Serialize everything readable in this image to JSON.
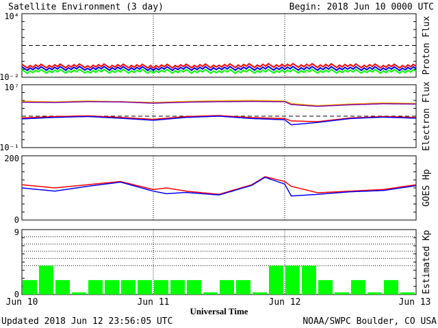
{
  "header": {
    "title": "Satellite Environment (3 day)",
    "begin": "Begin:  2018 Jun 10 0000 UTC"
  },
  "footer": {
    "updated": "Updated 2018 Jun 12 23:56:05 UTC",
    "credit": "NOAA/SWPC Boulder, CO USA"
  },
  "x_axis": {
    "label": "Universal Time",
    "ticks": [
      "Jun 10",
      "Jun 11",
      "Jun 12",
      "Jun 13"
    ]
  },
  "colors": {
    "red": "#ff0000",
    "blue": "#0000ff",
    "green": "#00ff00",
    "orange": "#ffa500",
    "purple": "#7a00a0",
    "frame": "#000000"
  },
  "chart_data": [
    {
      "type": "line",
      "ylabel": "Proton Flux",
      "y_scale": "log",
      "ylim": [
        0.01,
        10000
      ],
      "y_ticks": [
        "10⁴",
        "10⁻²"
      ],
      "threshold": 10,
      "x": [
        0,
        0.5,
        1,
        1.5,
        2,
        2.5,
        3
      ],
      "series": [
        {
          "color": "red",
          "values": [
            0.11,
            0.12,
            0.11,
            0.12,
            0.13,
            0.12,
            0.11
          ]
        },
        {
          "color": "blue",
          "values": [
            0.065,
            0.07,
            0.065,
            0.068,
            0.07,
            0.066,
            0.064
          ]
        },
        {
          "color": "green",
          "values": [
            0.035,
            0.037,
            0.036,
            0.035,
            0.037,
            0.036,
            0.035
          ]
        }
      ]
    },
    {
      "type": "line",
      "ylabel": "Electron Flux",
      "y_scale": "log",
      "ylim": [
        0.1,
        10000000
      ],
      "y_ticks": [
        "10⁷",
        "10⁻¹"
      ],
      "threshold": 1000,
      "x": [
        0,
        0.25,
        0.5,
        0.75,
        1.0,
        1.25,
        1.5,
        1.75,
        2.0,
        2.05,
        2.25,
        2.5,
        2.75,
        3.0
      ],
      "series": [
        {
          "color": "orange",
          "values": [
            80000,
            65000,
            85000,
            70000,
            55000,
            75000,
            90000,
            100000,
            85000,
            40000,
            22000,
            35000,
            48000,
            42000
          ]
        },
        {
          "color": "purple",
          "values": [
            60000,
            55000,
            70000,
            65000,
            45000,
            60000,
            70000,
            75000,
            70000,
            30000,
            18000,
            28000,
            38000,
            35000
          ]
        },
        {
          "color": "red",
          "values": [
            600,
            900,
            1100,
            700,
            400,
            900,
            1200,
            650,
            500,
            250,
            200,
            600,
            900,
            700
          ]
        },
        {
          "color": "blue",
          "values": [
            450,
            700,
            900,
            550,
            300,
            700,
            1000,
            500,
            350,
            80,
            160,
            500,
            750,
            550
          ]
        }
      ]
    },
    {
      "type": "line",
      "ylabel": "GOES Hp",
      "ylim": [
        0,
        200
      ],
      "y_ticks": [
        "200",
        "0"
      ],
      "x": [
        0,
        0.25,
        0.5,
        0.75,
        1.0,
        1.1,
        1.25,
        1.5,
        1.75,
        1.85,
        2.0,
        2.05,
        2.25,
        2.5,
        2.75,
        3.0
      ],
      "series": [
        {
          "color": "red",
          "values": [
            110,
            100,
            110,
            120,
            95,
            100,
            90,
            80,
            110,
            135,
            120,
            105,
            85,
            90,
            95,
            110
          ]
        },
        {
          "color": "blue",
          "values": [
            100,
            90,
            105,
            118,
            90,
            82,
            86,
            78,
            108,
            133,
            112,
            75,
            80,
            88,
            92,
            107
          ]
        }
      ]
    },
    {
      "type": "bar",
      "ylabel": "Estimated Kp",
      "ylim": [
        0,
        9
      ],
      "y_ticks": [
        "9",
        "0"
      ],
      "gridlines": [
        4,
        5,
        6,
        7,
        8
      ],
      "interval_hours": 3,
      "color": "green",
      "values": [
        2,
        4,
        2,
        0.3,
        2,
        2,
        2,
        2,
        2,
        2,
        2,
        0.3,
        2,
        2,
        0.3,
        4,
        4,
        4,
        2,
        0.3,
        2,
        0.3,
        2,
        0.3
      ]
    }
  ]
}
